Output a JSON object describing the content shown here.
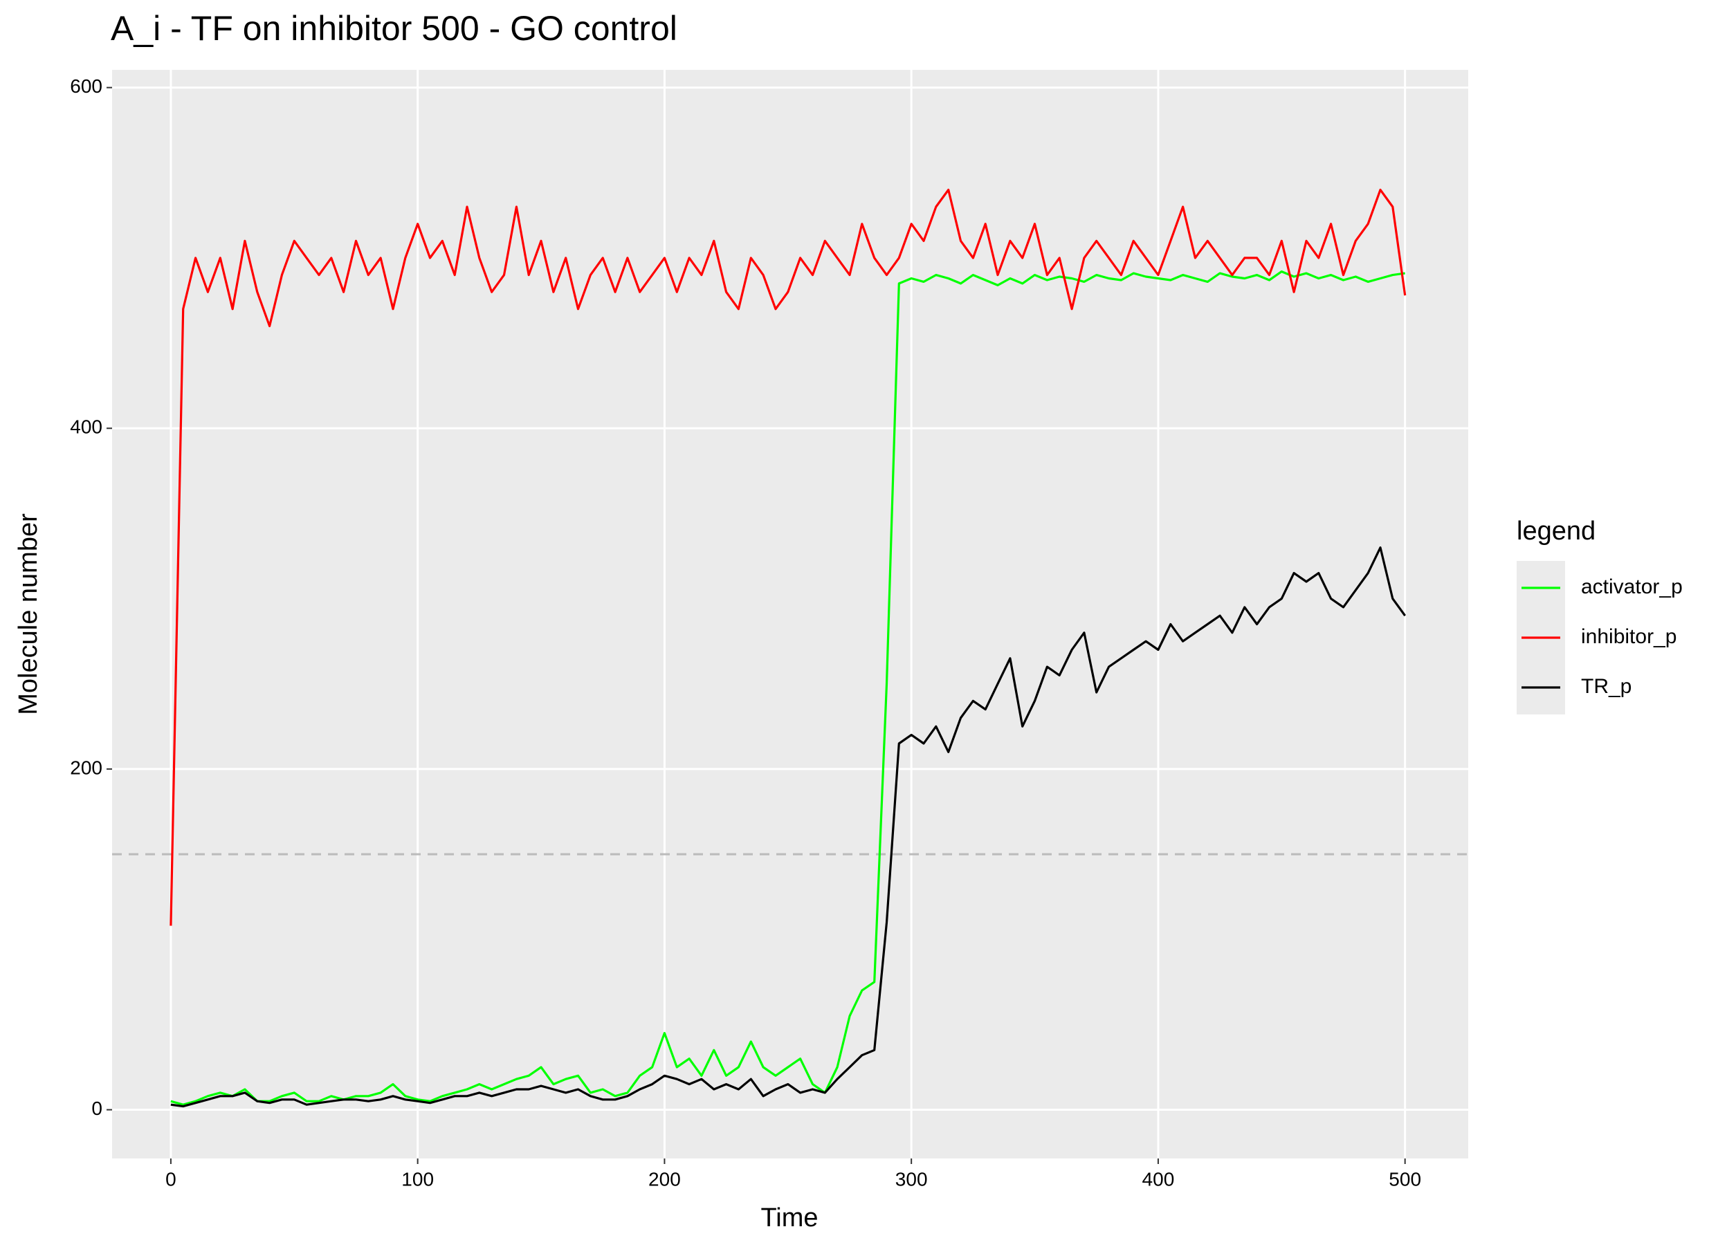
{
  "chart_data": {
    "type": "line",
    "title": "A_i - TF on inhibitor 500 - GO control",
    "x_label": "Time",
    "y_label": "Molecule number",
    "legend_title": "legend",
    "legend_position": "right",
    "x": [
      0,
      5,
      10,
      15,
      20,
      25,
      30,
      35,
      40,
      45,
      50,
      55,
      60,
      65,
      70,
      75,
      80,
      85,
      90,
      95,
      100,
      105,
      110,
      115,
      120,
      125,
      130,
      135,
      140,
      145,
      150,
      155,
      160,
      165,
      170,
      175,
      180,
      185,
      190,
      195,
      200,
      205,
      210,
      215,
      220,
      225,
      230,
      235,
      240,
      245,
      250,
      255,
      260,
      265,
      270,
      275,
      280,
      285,
      290,
      295,
      300,
      305,
      310,
      315,
      320,
      325,
      330,
      335,
      340,
      345,
      350,
      355,
      360,
      365,
      370,
      375,
      380,
      385,
      390,
      395,
      400,
      405,
      410,
      415,
      420,
      425,
      430,
      435,
      440,
      445,
      450,
      455,
      460,
      465,
      470,
      475,
      480,
      485,
      490,
      495,
      500
    ],
    "series": [
      {
        "name": "activator_p",
        "color": "#00ff00",
        "values": [
          5,
          3,
          5,
          8,
          10,
          8,
          12,
          5,
          5,
          8,
          10,
          5,
          5,
          8,
          6,
          8,
          8,
          10,
          15,
          8,
          6,
          5,
          8,
          10,
          12,
          15,
          12,
          15,
          18,
          20,
          25,
          15,
          18,
          20,
          10,
          12,
          8,
          10,
          20,
          25,
          45,
          25,
          30,
          20,
          35,
          20,
          25,
          40,
          25,
          20,
          25,
          30,
          15,
          10,
          25,
          55,
          70,
          75,
          250,
          485,
          488,
          486,
          490,
          488,
          485,
          490,
          487,
          484,
          488,
          485,
          490,
          487,
          489,
          488,
          486,
          490,
          488,
          487,
          491,
          489,
          488,
          487,
          490,
          488,
          486,
          491,
          489,
          488,
          490,
          487,
          492,
          489,
          491,
          488,
          490,
          487,
          489,
          486,
          488,
          490,
          491
        ]
      },
      {
        "name": "inhibitor_p",
        "color": "#ff0000",
        "values": [
          108,
          470,
          500,
          480,
          500,
          470,
          510,
          480,
          460,
          490,
          510,
          500,
          490,
          500,
          480,
          510,
          490,
          500,
          470,
          500,
          520,
          500,
          510,
          490,
          530,
          500,
          480,
          490,
          530,
          490,
          510,
          480,
          500,
          470,
          490,
          500,
          480,
          500,
          480,
          490,
          500,
          480,
          500,
          490,
          510,
          480,
          470,
          500,
          490,
          470,
          480,
          500,
          490,
          510,
          500,
          490,
          520,
          500,
          490,
          500,
          520,
          510,
          530,
          540,
          510,
          500,
          520,
          490,
          510,
          500,
          520,
          490,
          500,
          470,
          500,
          510,
          500,
          490,
          510,
          500,
          490,
          510,
          530,
          500,
          510,
          500,
          490,
          500,
          500,
          490,
          510,
          480,
          510,
          500,
          520,
          490,
          510,
          520,
          540,
          530,
          478
        ]
      },
      {
        "name": "TR_p",
        "color": "#000000",
        "values": [
          3,
          2,
          4,
          6,
          8,
          8,
          10,
          5,
          4,
          6,
          6,
          3,
          4,
          5,
          6,
          6,
          5,
          6,
          8,
          6,
          5,
          4,
          6,
          8,
          8,
          10,
          8,
          10,
          12,
          12,
          14,
          12,
          10,
          12,
          8,
          6,
          6,
          8,
          12,
          15,
          20,
          18,
          15,
          18,
          12,
          15,
          12,
          18,
          8,
          12,
          15,
          10,
          12,
          10,
          18,
          25,
          32,
          35,
          110,
          215,
          220,
          215,
          225,
          210,
          230,
          240,
          235,
          250,
          265,
          225,
          240,
          260,
          255,
          270,
          280,
          245,
          260,
          265,
          270,
          275,
          270,
          285,
          275,
          280,
          285,
          290,
          280,
          295,
          285,
          295,
          300,
          315,
          310,
          315,
          300,
          295,
          305,
          315,
          330,
          300,
          290
        ]
      }
    ],
    "reference_line": {
      "value": 150,
      "color": "#bbbbbb",
      "dashed": true
    },
    "xlim": [
      -23.8,
      525.6
    ],
    "ylim": [
      -28.6,
      610.4
    ],
    "xticks": [
      0,
      100,
      200,
      300,
      400,
      500
    ],
    "yticks": [
      0,
      200,
      400,
      600
    ],
    "grid": true,
    "background": "#ebebeb"
  }
}
